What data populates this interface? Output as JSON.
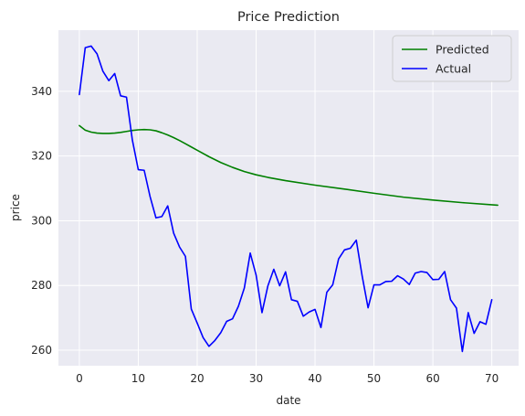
{
  "chart_data": {
    "type": "line",
    "title": "Price Prediction",
    "xlabel": "date",
    "ylabel": "price",
    "xlim": [
      -3.55,
      74.55
    ],
    "ylim": [
      255.2,
      358.9
    ],
    "xticks": [
      0,
      10,
      20,
      30,
      40,
      50,
      60,
      70
    ],
    "yticks": [
      260,
      280,
      300,
      320,
      340
    ],
    "grid": true,
    "legend_position": "top-right",
    "background_color": "#eaeaf2",
    "series": [
      {
        "name": "Predicted",
        "color": "#008000",
        "x": [
          0,
          1,
          2,
          3,
          4,
          5,
          6,
          7,
          8,
          9,
          10,
          11,
          12,
          13,
          14,
          15,
          16,
          17,
          18,
          19,
          20,
          22,
          24,
          26,
          28,
          30,
          32,
          35,
          40,
          45,
          50,
          55,
          60,
          65,
          71
        ],
        "y": [
          329.4,
          328.0,
          327.4,
          327.1,
          327.0,
          327.0,
          327.1,
          327.3,
          327.6,
          327.9,
          328.1,
          328.2,
          328.1,
          327.8,
          327.2,
          326.5,
          325.7,
          324.8,
          323.8,
          322.8,
          321.8,
          319.8,
          318.0,
          316.5,
          315.2,
          314.2,
          313.4,
          312.4,
          311.0,
          309.8,
          308.5,
          307.3,
          306.4,
          305.6,
          304.8
        ]
      },
      {
        "name": "Actual",
        "color": "#0000ff",
        "x": [
          0,
          1,
          2,
          3,
          4,
          5,
          6,
          7,
          8,
          9,
          10,
          11,
          12,
          13,
          14,
          15,
          16,
          17,
          18,
          19,
          20,
          21,
          22,
          23,
          24,
          25,
          26,
          27,
          28,
          29,
          30,
          31,
          32,
          33,
          34,
          35,
          36,
          37,
          38,
          39,
          40,
          41,
          42,
          43,
          44,
          45,
          46,
          47,
          48,
          49,
          50,
          51,
          52,
          53,
          54,
          55,
          56,
          57,
          58,
          59,
          60,
          61,
          62,
          63,
          64,
          65,
          66,
          67,
          68,
          69,
          70
        ],
        "y": [
          339.0,
          353.5,
          354.0,
          351.6,
          346.2,
          343.3,
          345.5,
          338.6,
          338.2,
          324.9,
          315.8,
          315.6,
          307.5,
          300.9,
          301.3,
          304.6,
          296.2,
          291.9,
          289.0,
          272.7,
          268.4,
          263.9,
          261.2,
          263.0,
          265.4,
          268.9,
          269.7,
          273.6,
          279.2,
          290.0,
          283.2,
          271.6,
          279.9,
          285.0,
          279.9,
          284.2,
          275.6,
          275.1,
          270.5,
          271.8,
          272.6,
          267.0,
          277.9,
          280.2,
          288.2,
          291.0,
          291.5,
          294.0,
          282.9,
          273.1,
          280.2,
          280.2,
          281.2,
          281.3,
          283.0,
          282.0,
          280.3,
          283.8,
          284.3,
          284.0,
          281.8,
          281.9,
          284.3,
          275.6,
          273.0,
          259.6,
          271.6,
          265.2,
          268.8,
          268.0,
          275.6
        ]
      }
    ]
  }
}
